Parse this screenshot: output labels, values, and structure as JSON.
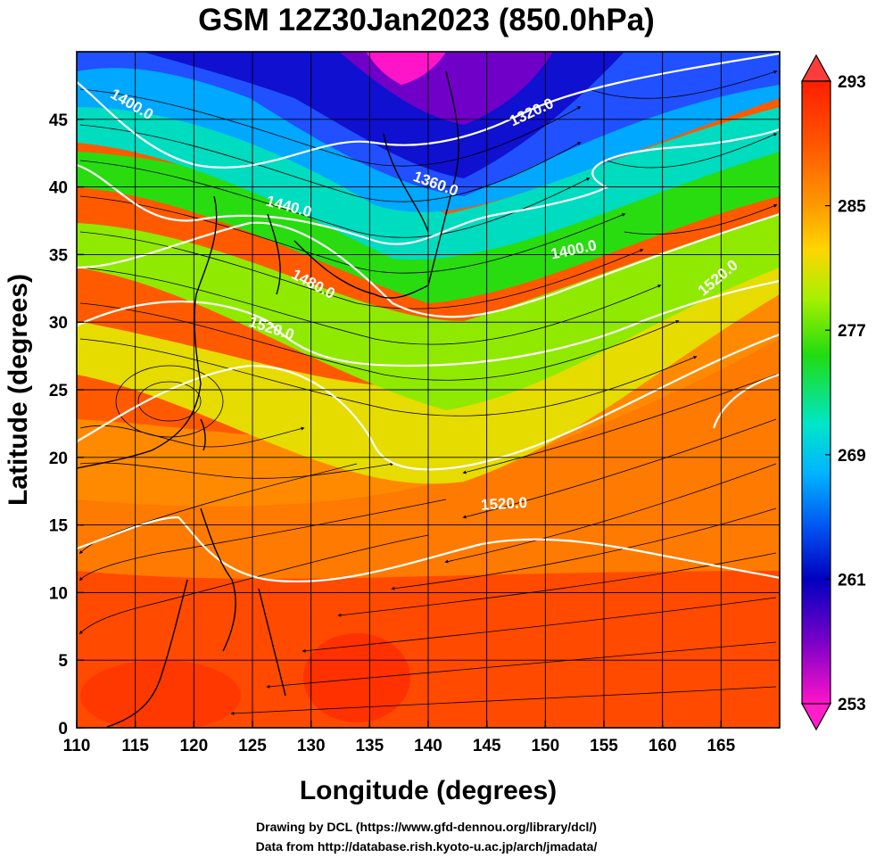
{
  "title": "GSM 12Z30Jan2023 (850.0hPa)",
  "xlabel": "Longitude (degrees)",
  "ylabel": "Latitude  (degrees)",
  "credits": [
    "Drawing by DCL (https://www.gfd-dennou.org/library/dcl/)",
    "Data from http://database.rish.kyoto-u.ac.jp/arch/jmadata/"
  ],
  "map": {
    "lon_range": [
      110,
      170
    ],
    "lat_range": [
      0,
      50
    ],
    "x_ticks": [
      "110",
      "115",
      "120",
      "125",
      "130",
      "135",
      "140",
      "145",
      "150",
      "155",
      "160",
      "165"
    ],
    "x_tick_values": [
      110,
      115,
      120,
      125,
      130,
      135,
      140,
      145,
      150,
      155,
      160,
      165
    ],
    "y_ticks": [
      "0",
      "5",
      "10",
      "15",
      "20",
      "25",
      "30",
      "35",
      "40",
      "45"
    ],
    "y_tick_values": [
      0,
      5,
      10,
      15,
      20,
      25,
      30,
      35,
      40,
      45
    ],
    "grid": true,
    "colorbar": {
      "range": [
        253,
        293
      ],
      "tick_labels": [
        "293",
        "285",
        "277",
        "269",
        "261",
        "253"
      ],
      "tick_values": [
        293,
        285,
        277,
        269,
        261,
        253
      ],
      "colors": [
        "#ff0000",
        "#ff5a00",
        "#ff9600",
        "#ffd700",
        "#b4f000",
        "#32dc00",
        "#00e6b4",
        "#00c8ff",
        "#0050ff",
        "#0000c8",
        "#6400c8",
        "#ff00c8"
      ]
    },
    "contour_labels": [
      {
        "text": "1400.0",
        "lon": 114.5,
        "lat": 45.8,
        "angle": 30
      },
      {
        "text": "1320.0",
        "lon": 149.0,
        "lat": 45.2,
        "angle": -25
      },
      {
        "text": "1360.0",
        "lon": 140.5,
        "lat": 39.9,
        "angle": 20
      },
      {
        "text": "1440.0",
        "lon": 128.0,
        "lat": 38.2,
        "angle": 15
      },
      {
        "text": "1400.0",
        "lon": 152.5,
        "lat": 35.0,
        "angle": -12
      },
      {
        "text": "1480.0",
        "lon": 130.0,
        "lat": 32.5,
        "angle": 28
      },
      {
        "text": "1520.0",
        "lon": 126.5,
        "lat": 29.2,
        "angle": 18
      },
      {
        "text": "1520.0",
        "lon": 146.5,
        "lat": 16.2,
        "angle": -3
      },
      {
        "text": "1520.0",
        "lon": 165.0,
        "lat": 33.0,
        "angle": -40
      }
    ]
  }
}
